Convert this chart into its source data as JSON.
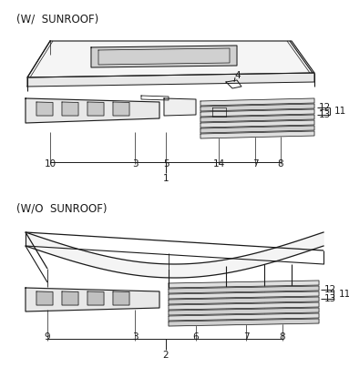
{
  "bg_color": "#ffffff",
  "lc": "#1a1a1a",
  "title1": "(W/  SUNROOF)",
  "title2": "(W/O  SUNROOF)",
  "fs_title": 8.5,
  "fs_label": 7.5
}
